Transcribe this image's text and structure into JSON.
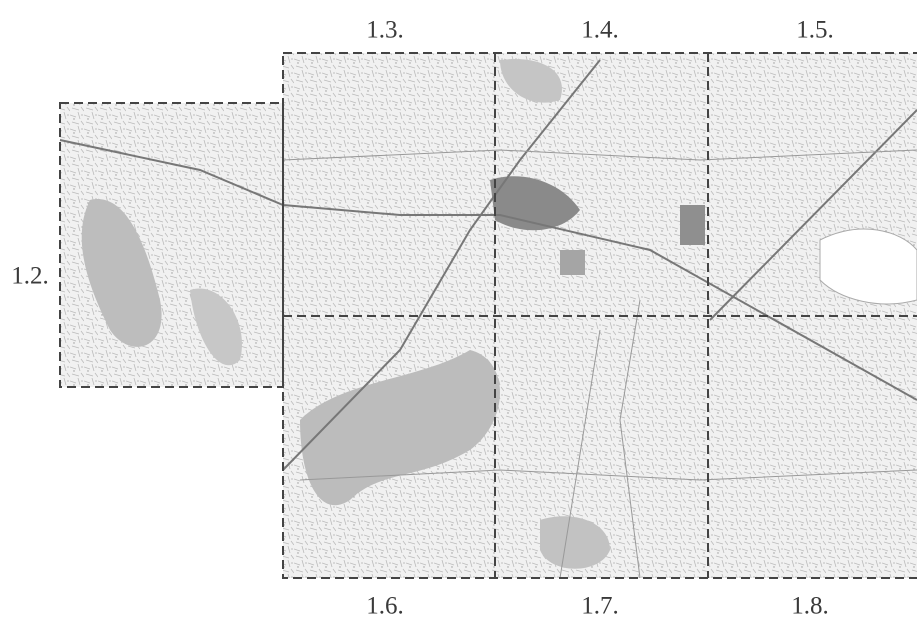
{
  "tiles": [
    {
      "label": "1.2."
    },
    {
      "label": "1.3."
    },
    {
      "label": "1.4."
    },
    {
      "label": "1.5."
    },
    {
      "label": "1.6."
    },
    {
      "label": "1.7."
    },
    {
      "label": "1.8."
    }
  ]
}
